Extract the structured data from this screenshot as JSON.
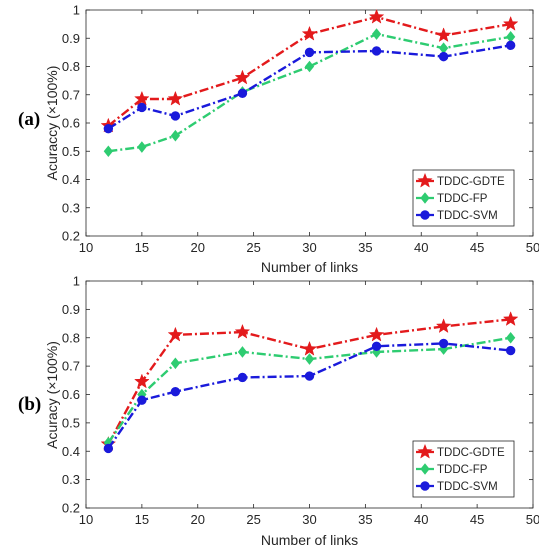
{
  "chart_data": [
    {
      "type": "line",
      "panel_label": "(a)",
      "xlabel": "Number of links",
      "ylabel": "Acuraccy (×100%)",
      "xlim": [
        10,
        50
      ],
      "ylim": [
        0.2,
        1
      ],
      "xticks": [
        10,
        15,
        20,
        25,
        30,
        35,
        40,
        45,
        50
      ],
      "yticks": [
        0.2,
        0.3,
        0.4,
        0.5,
        0.6,
        0.7,
        0.8,
        0.9,
        1
      ],
      "ytick_labels": [
        "0.2",
        "0.3",
        "0.4",
        "0.5",
        "0.6",
        "0.7",
        "0.8",
        "0.9",
        "1"
      ],
      "grid": false,
      "legend_position": "bottom-right",
      "x": [
        12,
        15,
        18,
        24,
        30,
        36,
        42,
        48
      ],
      "series": [
        {
          "name": "TDDC-GDTE",
          "color": "#e31a1c",
          "marker": "star",
          "values": [
            0.59,
            0.685,
            0.685,
            0.76,
            0.915,
            0.975,
            0.91,
            0.95
          ]
        },
        {
          "name": "TDDC-FP",
          "color": "#2ecc71",
          "marker": "diamond",
          "values": [
            0.5,
            0.515,
            0.555,
            0.71,
            0.8,
            0.915,
            0.865,
            0.905
          ]
        },
        {
          "name": "TDDC-SVM",
          "color": "#1a1adb",
          "marker": "circle",
          "values": [
            0.58,
            0.655,
            0.625,
            0.705,
            0.85,
            0.855,
            0.835,
            0.875
          ]
        }
      ]
    },
    {
      "type": "line",
      "panel_label": "(b)",
      "xlabel": "Number of links",
      "ylabel": "Acuracy (×100%)",
      "xlim": [
        10,
        50
      ],
      "ylim": [
        0.2,
        1
      ],
      "xticks": [
        10,
        15,
        20,
        25,
        30,
        35,
        40,
        45,
        50
      ],
      "yticks": [
        0.2,
        0.3,
        0.4,
        0.5,
        0.6,
        0.7,
        0.8,
        0.9,
        1
      ],
      "ytick_labels": [
        "0.2",
        "0.3",
        "0.4",
        "0.5",
        "0.6",
        "0.7",
        "0.8",
        "0.9",
        "1"
      ],
      "grid": false,
      "legend_position": "bottom-right",
      "x": [
        12,
        15,
        18,
        24,
        30,
        36,
        42,
        48
      ],
      "series": [
        {
          "name": "TDDC-GDTE",
          "color": "#e31a1c",
          "marker": "star",
          "values": [
            0.425,
            0.645,
            0.81,
            0.82,
            0.76,
            0.81,
            0.84,
            0.865
          ]
        },
        {
          "name": "TDDC-FP",
          "color": "#2ecc71",
          "marker": "diamond",
          "values": [
            0.43,
            0.6,
            0.71,
            0.75,
            0.725,
            0.75,
            0.76,
            0.8
          ]
        },
        {
          "name": "TDDC-SVM",
          "color": "#1a1adb",
          "marker": "circle",
          "values": [
            0.41,
            0.58,
            0.61,
            0.66,
            0.665,
            0.77,
            0.78,
            0.755
          ]
        }
      ]
    }
  ]
}
